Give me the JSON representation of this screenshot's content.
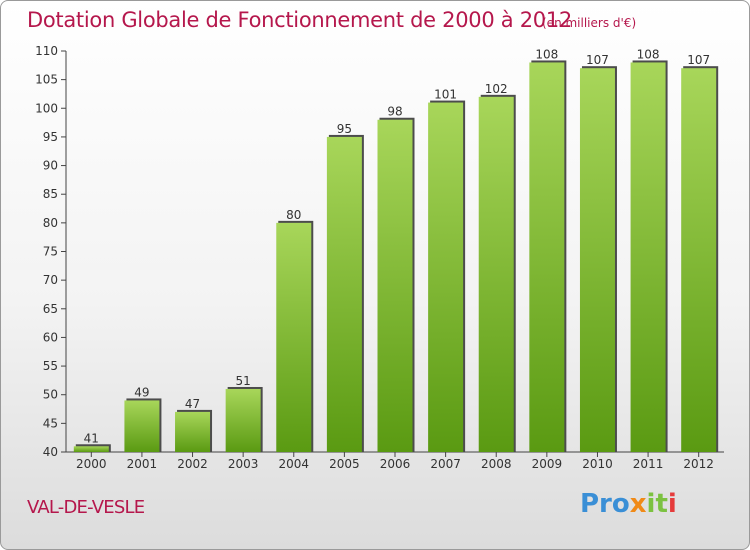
{
  "header": {
    "title": "Dotation Globale de Fonctionnement de 2000 à 2012",
    "subtitle": "(en milliers d'€)"
  },
  "footer": {
    "commune": "VAL-DE-VESLE",
    "logo_text": "Proxiti",
    "logo_parts": [
      "Pro",
      "x",
      "it",
      "i"
    ]
  },
  "colors": {
    "title": "#b5174c",
    "bar_light": "#a8d65a",
    "bar_dark": "#5a9a12",
    "bar_shadow": "#4c4c4c"
  },
  "chart_data": {
    "type": "bar",
    "title": "Dotation Globale de Fonctionnement de 2000 à 2012",
    "subtitle": "(en milliers d'€)",
    "xlabel": "",
    "ylabel": "",
    "categories": [
      "2000",
      "2001",
      "2002",
      "2003",
      "2004",
      "2005",
      "2006",
      "2007",
      "2008",
      "2009",
      "2010",
      "2011",
      "2012"
    ],
    "values": [
      41,
      49,
      47,
      51,
      80,
      95,
      98,
      101,
      102,
      108,
      107,
      108,
      107
    ],
    "ylim": [
      40,
      110
    ],
    "yticks": [
      40,
      45,
      50,
      55,
      60,
      65,
      70,
      75,
      80,
      85,
      90,
      95,
      100,
      105,
      110
    ],
    "grid": false,
    "legend": "none"
  }
}
